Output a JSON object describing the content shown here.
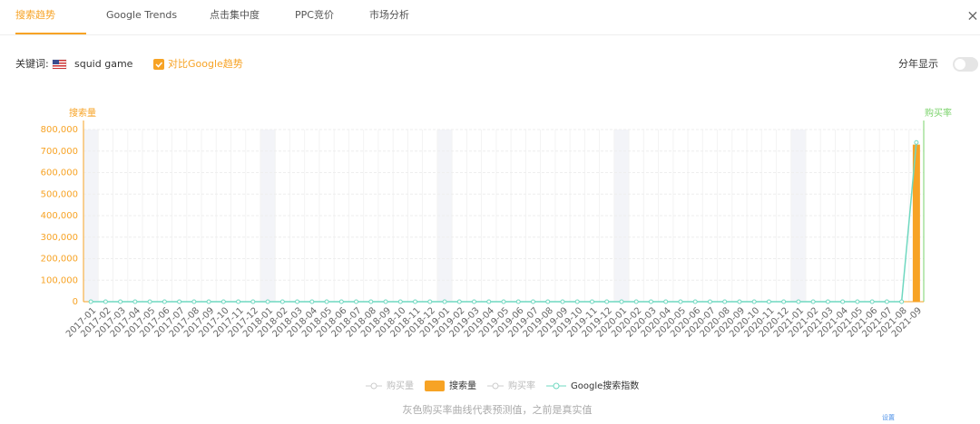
{
  "tabs": [
    "搜索趋势",
    "Google Trends",
    "点击集中度",
    "PPC竞价",
    "市场分析"
  ],
  "keyword_label": "关键词:",
  "keyword": "squid game",
  "compare_label": "对比Google趋势",
  "year_toggle_label": "分年显示",
  "chart_data": {
    "type": "bar",
    "y_label": "搜索量",
    "y2_label": "购买率",
    "categories": [
      "2017-01",
      "2017-02",
      "2017-03",
      "2017-04",
      "2017-05",
      "2017-06",
      "2017-07",
      "2017-08",
      "2017-09",
      "2017-10",
      "2017-11",
      "2017-12",
      "2018-01",
      "2018-02",
      "2018-03",
      "2018-04",
      "2018-05",
      "2018-06",
      "2018-07",
      "2018-08",
      "2018-09",
      "2018-10",
      "2018-11",
      "2018-12",
      "2019-01",
      "2019-02",
      "2019-03",
      "2019-04",
      "2019-05",
      "2019-06",
      "2019-07",
      "2019-08",
      "2019-09",
      "2019-10",
      "2019-11",
      "2019-12",
      "2020-01",
      "2020-02",
      "2020-03",
      "2020-04",
      "2020-05",
      "2020-06",
      "2020-07",
      "2020-08",
      "2020-09",
      "2020-10",
      "2020-11",
      "2020-12",
      "2021-01",
      "2021-02",
      "2021-03",
      "2021-04",
      "2021-05",
      "2021-06",
      "2021-07",
      "2021-08",
      "2021-09"
    ],
    "series": [
      {
        "name": "搜索量",
        "type": "bar",
        "color": "#f7a325",
        "values": [
          0,
          0,
          0,
          0,
          0,
          0,
          0,
          0,
          0,
          0,
          0,
          0,
          0,
          0,
          0,
          0,
          0,
          0,
          0,
          0,
          0,
          0,
          0,
          0,
          0,
          0,
          0,
          0,
          0,
          0,
          0,
          0,
          0,
          0,
          0,
          0,
          0,
          0,
          0,
          0,
          0,
          0,
          0,
          0,
          0,
          0,
          0,
          0,
          0,
          0,
          0,
          0,
          0,
          0,
          0,
          0,
          730000
        ]
      },
      {
        "name": "Google搜索指数",
        "type": "line",
        "color": "#6fd8c0",
        "values": [
          0,
          0,
          0,
          0,
          0,
          0,
          0,
          0,
          0,
          0,
          0,
          0,
          0,
          0,
          0,
          0,
          0,
          0,
          0,
          0,
          0,
          0,
          0,
          0,
          0,
          0,
          0,
          0,
          0,
          0,
          0,
          0,
          0,
          0,
          0,
          0,
          0,
          0,
          0,
          0,
          0,
          0,
          0,
          0,
          0,
          0,
          0,
          0,
          0,
          0,
          0,
          0,
          0,
          0,
          0,
          0,
          740000
        ]
      }
    ],
    "inactive_legend": [
      "购买量",
      "购买率"
    ],
    "ylim": [
      0,
      800000
    ],
    "yticks": [
      0,
      {
        "value": 100000,
        "label": "100,000"
      },
      {
        "value": 200000,
        "label": "200,000"
      },
      {
        "value": 300000,
        "label": "300,000"
      },
      {
        "value": 400000,
        "label": "400,000"
      },
      {
        "value": 500000,
        "label": "500,000"
      },
      {
        "value": 600000,
        "label": "600,000"
      },
      {
        "value": 700000,
        "label": "700,000"
      },
      {
        "value": 800000,
        "label": "800,000"
      }
    ],
    "grid": true
  },
  "note": "灰色购买率曲线代表预测值，之前是真实值",
  "settings_link": "设置"
}
